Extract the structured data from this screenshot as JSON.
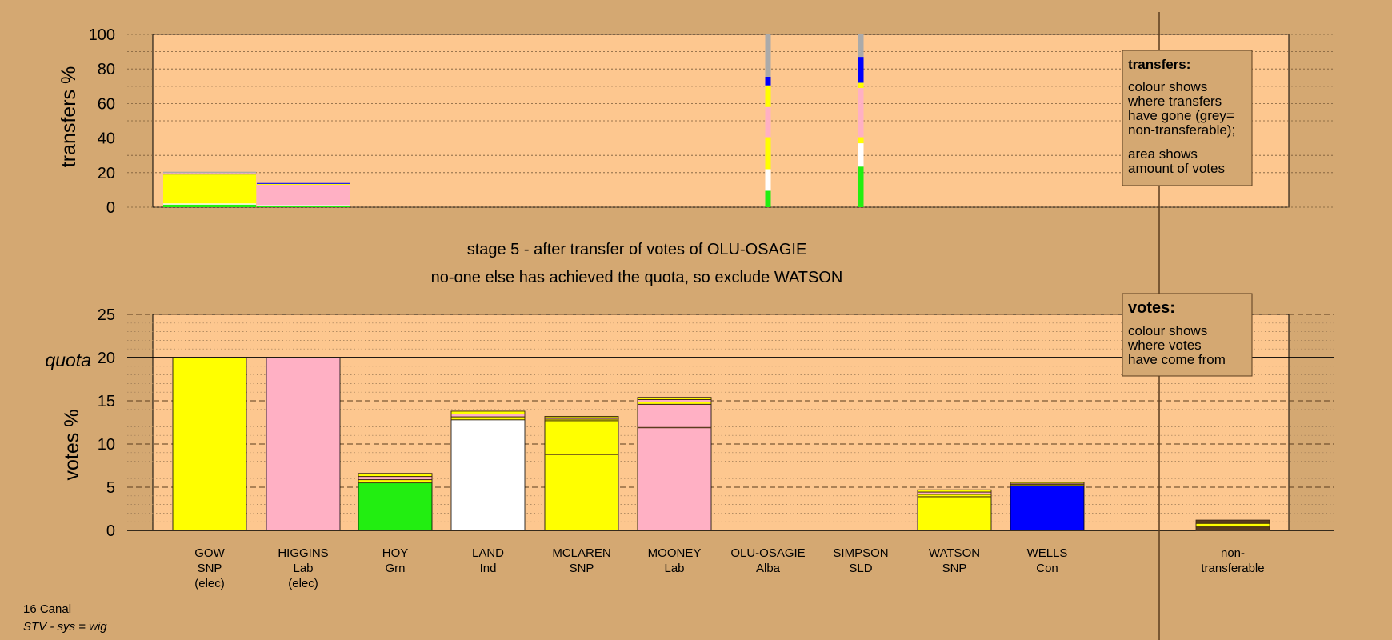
{
  "colors": {
    "background": "#d4a872",
    "plot_bg": "#fdc78f",
    "SNP": "#ffff00",
    "Lab": "#ffb0c4",
    "Grn": "#22ee11",
    "Ind": "#ffffff",
    "Con": "#0000ff",
    "grey": "#aaaaaa",
    "dark": "#5a3c1e"
  },
  "footer": {
    "line1": "16 Canal",
    "line2": "STV - sys = wig"
  },
  "stage": {
    "line1": "stage 5 - after transfer of votes of OLU-OSAGIE",
    "line2": "no-one else has achieved the quota, so exclude WATSON"
  },
  "legend_transfers": {
    "title": "transfers:",
    "lines": [
      "colour shows",
      "where transfers",
      "have gone (grey=",
      "non-transferable);",
      "area shows",
      "amount of votes"
    ]
  },
  "legend_votes": {
    "title": "votes:",
    "lines": [
      "colour shows",
      "where votes",
      "have come from"
    ]
  },
  "chart_data": [
    {
      "type": "bar",
      "ylabel": "transfers %",
      "ylim": [
        0,
        100
      ],
      "yticks": [
        0,
        20,
        40,
        60,
        80,
        100
      ],
      "columns": [
        {
          "name": "GOW",
          "width": "wide",
          "segments": [
            [
              "Grn",
              1.5
            ],
            [
              "Ind",
              0.7
            ],
            [
              "SNP",
              16.8
            ],
            [
              "Con",
              0.3
            ],
            [
              "Lab",
              0.5
            ],
            [
              "grey",
              0.7
            ]
          ]
        },
        {
          "name": "HIGGINS",
          "width": "wide",
          "segments": [
            [
              "Grn",
              0.6
            ],
            [
              "Ind",
              0.6
            ],
            [
              "Lab",
              11.8
            ],
            [
              "SNP",
              0.5
            ],
            [
              "Con",
              0.5
            ]
          ]
        },
        {
          "name": "OLU-OSAGIE",
          "width": "thin",
          "segments": [
            [
              "Grn",
              9.5
            ],
            [
              "Ind",
              12.5
            ],
            [
              "SNP",
              18.5
            ],
            [
              "Lab",
              17.5
            ],
            [
              "SNP",
              12.5
            ],
            [
              "Con",
              5
            ],
            [
              "grey",
              24.5
            ]
          ]
        },
        {
          "name": "SIMPSON",
          "width": "thin",
          "segments": [
            [
              "Grn",
              23.5
            ],
            [
              "Ind",
              13.5
            ],
            [
              "SNP",
              3.5
            ],
            [
              "Lab",
              28.5
            ],
            [
              "SNP",
              3
            ],
            [
              "Con",
              15
            ],
            [
              "grey",
              13
            ]
          ]
        }
      ]
    },
    {
      "type": "bar",
      "ylabel": "votes %",
      "ylim": [
        0,
        25
      ],
      "yticks": [
        0,
        5,
        10,
        15,
        20,
        25
      ],
      "quota": 20,
      "quota_label": "quota",
      "candidates": [
        {
          "name": "GOW",
          "party": "SNP",
          "note": "(elec)",
          "color": "SNP",
          "total": 20,
          "base": 20,
          "inner_lines": []
        },
        {
          "name": "HIGGINS",
          "party": "Lab",
          "note": "(elec)",
          "color": "Lab",
          "total": 20,
          "base": 20,
          "inner_lines": []
        },
        {
          "name": "HOY",
          "party": "Grn",
          "note": "",
          "color": "Grn",
          "total": 6.6,
          "base": 5.5,
          "inner_lines": []
        },
        {
          "name": "LAND",
          "party": "Ind",
          "note": "",
          "color": "Ind",
          "total": 13.8,
          "base": 12.8,
          "inner_lines": []
        },
        {
          "name": "MCLAREN",
          "party": "SNP",
          "note": "",
          "color": "SNP",
          "total": 13.2,
          "base": 12.7,
          "inner_lines": [
            8.8
          ]
        },
        {
          "name": "MOONEY",
          "party": "Lab",
          "note": "",
          "color": "Lab",
          "total": 15.4,
          "base": 14.6,
          "inner_lines": [
            11.9
          ]
        },
        {
          "name": "OLU-OSAGIE",
          "party": "Alba",
          "note": "",
          "color": "SNP",
          "total": 0,
          "base": 0,
          "inner_lines": []
        },
        {
          "name": "SIMPSON",
          "party": "SLD",
          "note": "",
          "color": "SNP",
          "total": 0,
          "base": 0,
          "inner_lines": []
        },
        {
          "name": "WATSON",
          "party": "SNP",
          "note": "",
          "color": "SNP",
          "total": 4.7,
          "base": 3.9,
          "inner_lines": []
        },
        {
          "name": "WELLS",
          "party": "Con",
          "note": "",
          "color": "Con",
          "total": 5.6,
          "base": 5.2,
          "inner_lines": []
        }
      ],
      "nontransferable": {
        "label1": "non-",
        "label2": "transferable",
        "total": 1.2
      }
    }
  ]
}
